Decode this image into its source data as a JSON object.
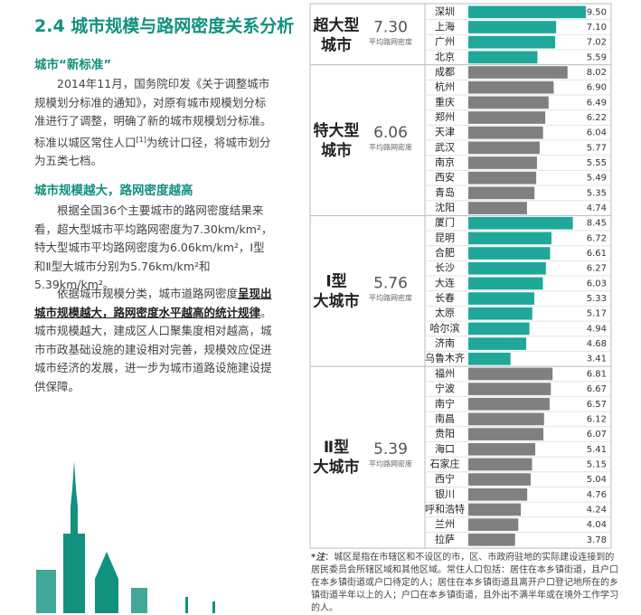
{
  "document": {
    "heading": "2.4 城市规模与路网密度关系分析",
    "section1": {
      "title": "城市“新标准”",
      "paragraph": [
        "2014年11月，国务院印发《关于调整城市规模划分标准的通知》，对原有城市规模划分标准进行了调整，明确了新的城市规模划分标准。标准以城区常住人口",
        "[1]",
        "为统计口径，将城市划分为五类七档。"
      ]
    },
    "section2": {
      "title": "城市规模越大，路网密度越高",
      "paragraph1": "根据全国36个主要城市的路网密度结果来看，超大型城市平均路网密度为7.30km/km²，特大型城市平均路网密度为6.06km/km²，Ⅰ型和Ⅱ型大城市分别为5.76km/km²和5.39km/km²。",
      "paragraph2": [
        "依据城市规模分类，城市道路网密度",
        "呈现出城市规模越大，路网密度水平越高的统计规律",
        "。城市规模越大，建成区人口聚集度相对越高，城市市政基础设施的建设相对完善，规模效应促进城市经济的发展，进一步为城市道路设施建设提供保障。"
      ]
    },
    "note": {
      "label": "*注",
      "text": "：城区是指在市辖区和不设区的市，区、市政府驻地的实际建设连接到的居民委员会所辖区域和其他区域。常住人口包括：居住在本乡镇街道，且户口在本乡镇街道或户口待定的人；居住在本乡镇街道且离开户口登记地所在的乡镇街道半年以上的人；户口在本乡镇街道，且外出不满半年或在境外工作学习的人。"
    }
  },
  "chart_data": {
    "type": "bar",
    "groups": [
      {
        "name": [
          "超大型",
          "城市"
        ],
        "average": {
          "value": 7.3,
          "label": "7.30"
        },
        "average_caption": "平均路网密度",
        "color": "#1fa89a",
        "categories": [
          "深圳",
          "上海",
          "广州",
          "北京"
        ],
        "values": [
          9.5,
          7.1,
          7.02,
          5.59
        ],
        "value_labels": [
          "9.50",
          "7.10",
          "7.02",
          "5.59"
        ]
      },
      {
        "name": [
          "特大型",
          "城市"
        ],
        "average": {
          "value": 6.06,
          "label": "6.06"
        },
        "average_caption": "平均路网密度",
        "color": "#808080",
        "categories": [
          "成都",
          "杭州",
          "重庆",
          "郑州",
          "天津",
          "武汉",
          "南京",
          "西安",
          "青岛",
          "沈阳"
        ],
        "values": [
          8.02,
          6.9,
          6.49,
          6.22,
          6.04,
          5.77,
          5.55,
          5.49,
          5.35,
          4.74
        ],
        "value_labels": [
          "8.02",
          "6.90",
          "6.49",
          "6.22",
          "6.04",
          "5.77",
          "5.55",
          "5.49",
          "5.35",
          "4.74"
        ]
      },
      {
        "name": [
          "Ⅰ型",
          "大城市"
        ],
        "average": {
          "value": 5.76,
          "label": "5.76"
        },
        "average_caption": "平均路网密度",
        "color": "#1fa89a",
        "categories": [
          "厦门",
          "昆明",
          "合肥",
          "长沙",
          "大连",
          "长春",
          "太原",
          "哈尔滨",
          "济南",
          "乌鲁木齐"
        ],
        "values": [
          8.45,
          6.72,
          6.61,
          6.27,
          6.03,
          5.33,
          5.17,
          4.94,
          4.68,
          3.41
        ],
        "value_labels": [
          "8.45",
          "6.72",
          "6.61",
          "6.27",
          "6.03",
          "5.33",
          "5.17",
          "4.94",
          "4.68",
          "3.41"
        ]
      },
      {
        "name": [
          "Ⅱ型",
          "大城市"
        ],
        "average": {
          "value": 5.39,
          "label": "5.39"
        },
        "average_caption": "平均路网密度",
        "color": "#808080",
        "categories": [
          "福州",
          "宁波",
          "南宁",
          "南昌",
          "贵阳",
          "海口",
          "石家庄",
          "西宁",
          "银川",
          "呼和浩特",
          "兰州",
          "拉萨"
        ],
        "values": [
          6.81,
          6.67,
          6.57,
          6.12,
          6.07,
          5.41,
          5.15,
          5.04,
          4.76,
          4.24,
          4.04,
          3.78
        ],
        "value_labels": [
          "6.81",
          "6.67",
          "6.57",
          "6.12",
          "6.07",
          "5.41",
          "5.15",
          "5.04",
          "4.76",
          "4.24",
          "4.04",
          "3.78"
        ]
      }
    ]
  }
}
